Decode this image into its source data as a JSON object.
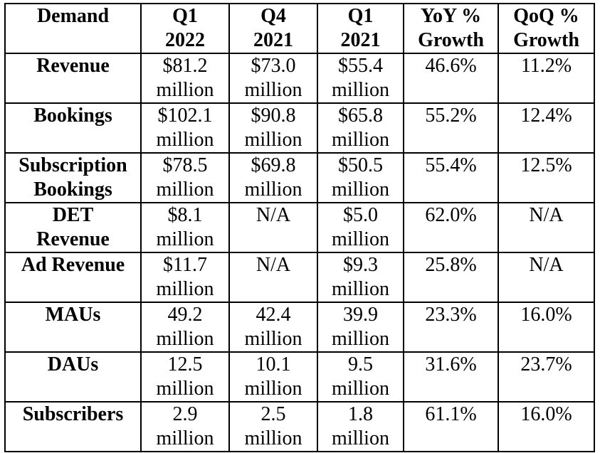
{
  "table": {
    "headers": [
      "Demand",
      "Q1\n2022",
      "Q4\n2021",
      "Q1\n2021",
      "YoY %\nGrowth",
      "QoQ %\nGrowth"
    ],
    "rows": [
      {
        "label": "Revenue",
        "cells": [
          "$81.2\nmillion",
          "$73.0\nmillion",
          "$55.4\nmillion",
          "46.6%",
          "11.2%"
        ]
      },
      {
        "label": "Bookings",
        "cells": [
          "$102.1\nmillion",
          "$90.8\nmillion",
          "$65.8\nmillion",
          "55.2%",
          "12.4%"
        ]
      },
      {
        "label": "Subscription\nBookings",
        "cells": [
          "$78.5\nmillion",
          "$69.8\nmillion",
          "$50.5\nmillion",
          "55.4%",
          "12.5%"
        ]
      },
      {
        "label": "DET\nRevenue",
        "cells": [
          "$8.1\nmillion",
          "N/A",
          "$5.0\nmillion",
          "62.0%",
          "N/A"
        ]
      },
      {
        "label": "Ad Revenue",
        "cells": [
          "$11.7\nmillion",
          "N/A",
          "$9.3\nmillion",
          "25.8%",
          "N/A"
        ]
      },
      {
        "label": "MAUs",
        "cells": [
          "49.2\nmillion",
          "42.4\nmillion",
          "39.9\nmillion",
          "23.3%",
          "16.0%"
        ]
      },
      {
        "label": "DAUs",
        "cells": [
          "12.5\nmillion",
          "10.1\nmillion",
          "9.5\nmillion",
          "31.6%",
          "23.7%"
        ]
      },
      {
        "label": "Subscribers",
        "cells": [
          "2.9\nmillion",
          "2.5\nmillion",
          "1.8\nmillion",
          "61.1%",
          "16.0%"
        ]
      }
    ]
  }
}
